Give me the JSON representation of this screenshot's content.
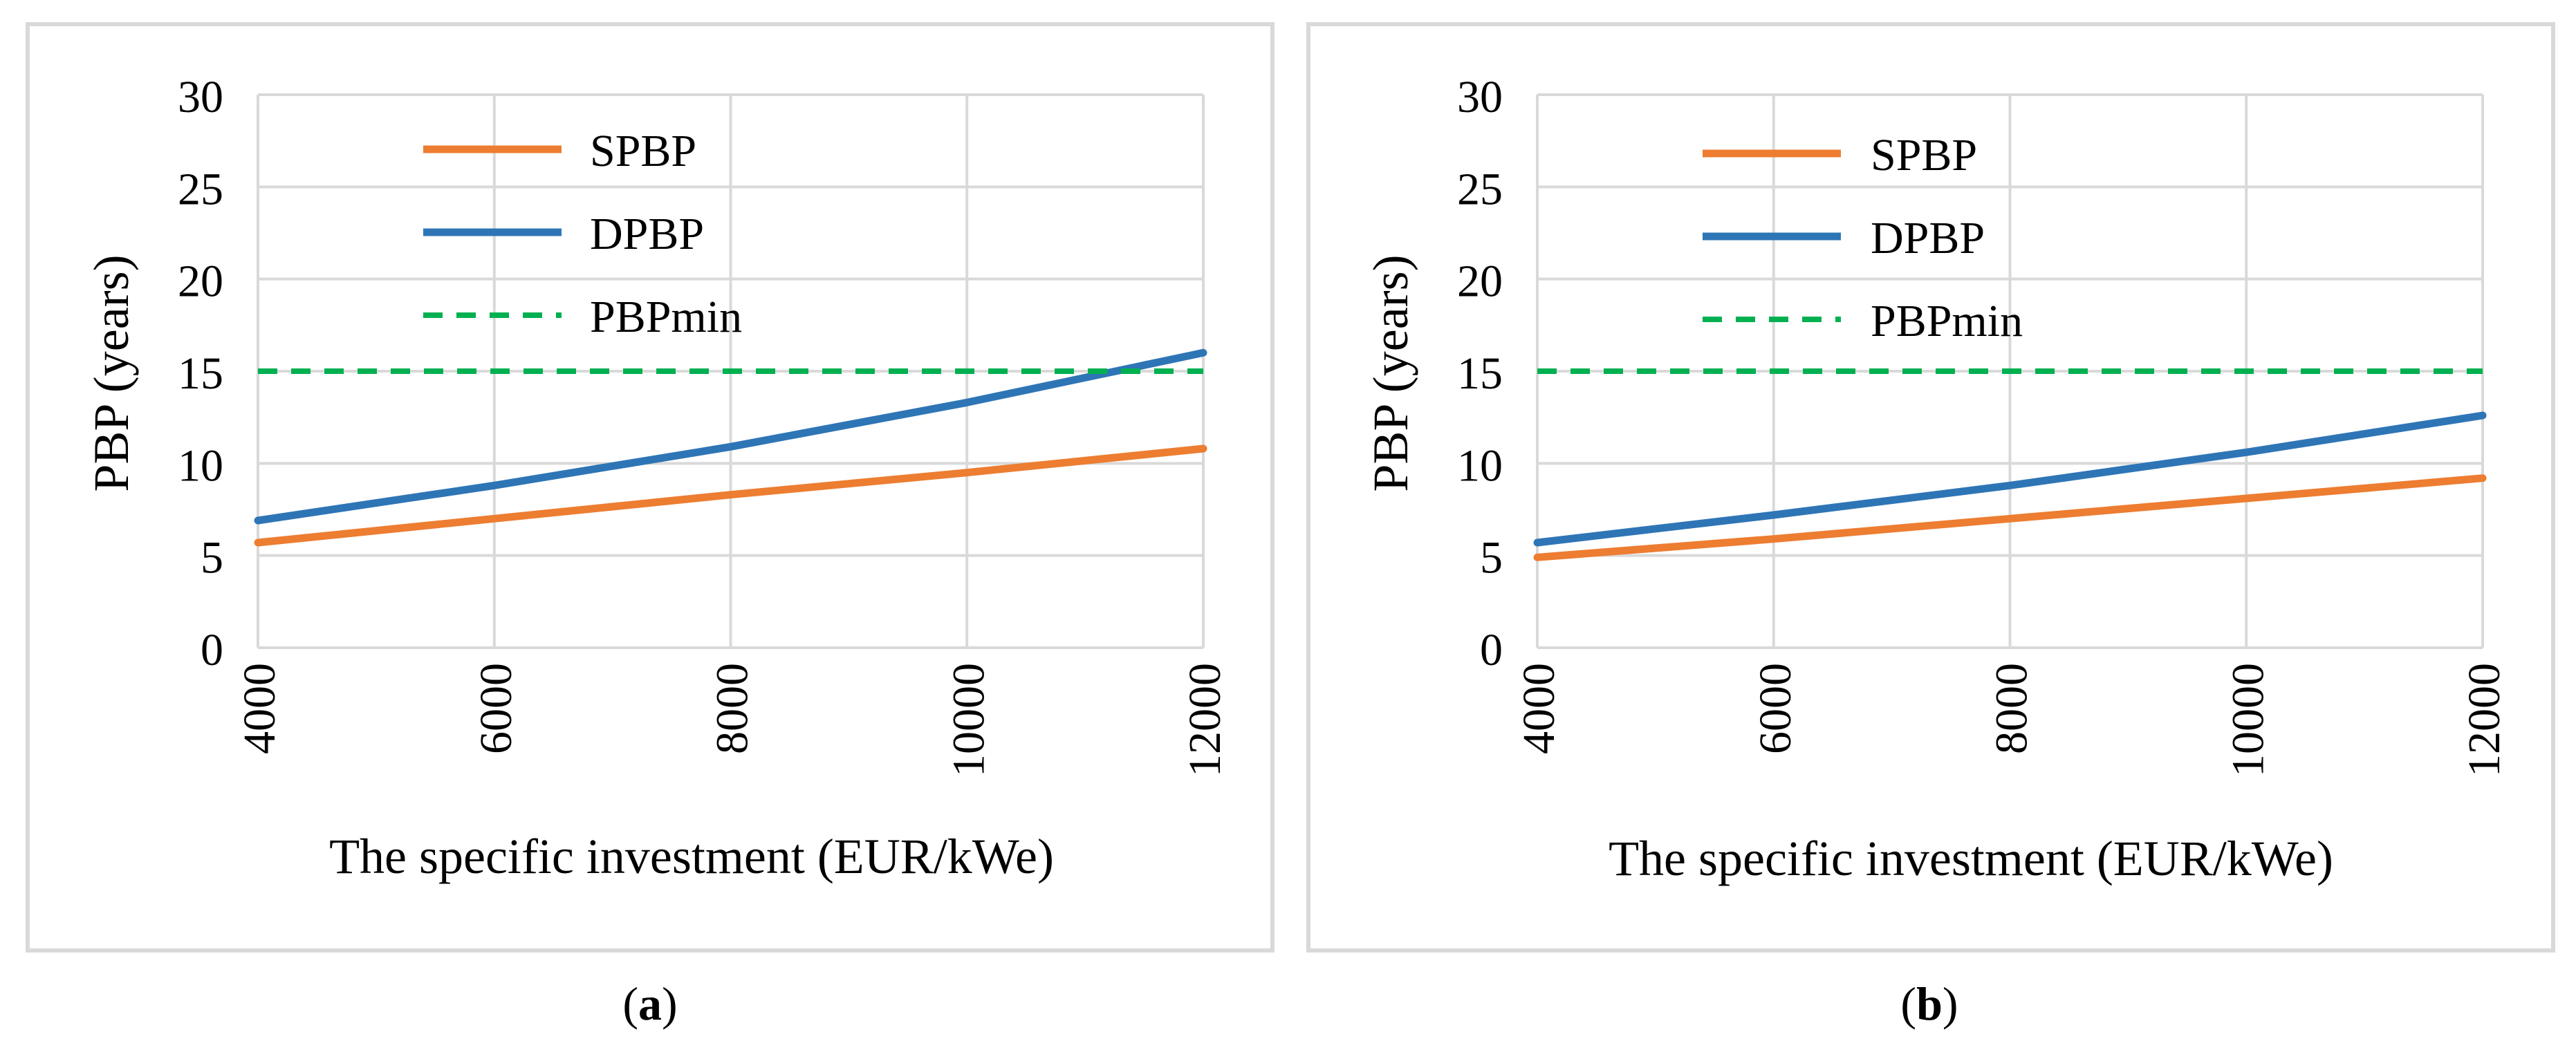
{
  "chart_data": [
    {
      "type": "line",
      "x": [
        4000,
        6000,
        8000,
        10000,
        12000
      ],
      "xlim": [
        4000,
        12000
      ],
      "ylim": [
        0,
        30
      ],
      "yticks": [
        0,
        5,
        10,
        15,
        20,
        25,
        30
      ],
      "xlabel": "The specific investment (EUR/kWe)",
      "ylabel": "PBP (years)",
      "caption_open": "(",
      "caption_letter": "a",
      "caption_close": ")",
      "grid": true,
      "legend_position": "top-left",
      "series": [
        {
          "name": "SPBP",
          "color": "#ED7D31",
          "style": "solid",
          "values": [
            5.7,
            7.0,
            8.3,
            9.5,
            10.8
          ]
        },
        {
          "name": "DPBP",
          "color": "#2E75B6",
          "style": "solid",
          "values": [
            6.9,
            8.8,
            10.9,
            13.3,
            16.0
          ]
        },
        {
          "name": "PBPmin",
          "color": "#00B050",
          "style": "dashed",
          "values": [
            15,
            15,
            15,
            15,
            15
          ]
        }
      ]
    },
    {
      "type": "line",
      "x": [
        4000,
        6000,
        8000,
        10000,
        12000
      ],
      "xlim": [
        4000,
        12000
      ],
      "ylim": [
        0,
        30
      ],
      "yticks": [
        0,
        5,
        10,
        15,
        20,
        25,
        30
      ],
      "xlabel": "The specific investment (EUR/kWe)",
      "ylabel": "PBP (years)",
      "caption_open": "(",
      "caption_letter": "b",
      "caption_close": ")",
      "grid": true,
      "legend_position": "top-left",
      "series": [
        {
          "name": "SPBP",
          "color": "#ED7D31",
          "style": "solid",
          "values": [
            4.9,
            5.9,
            7.0,
            8.1,
            9.2
          ]
        },
        {
          "name": "DPBP",
          "color": "#2E75B6",
          "style": "solid",
          "values": [
            5.7,
            7.2,
            8.8,
            10.6,
            12.6
          ]
        },
        {
          "name": "PBPmin",
          "color": "#00B050",
          "style": "dashed",
          "values": [
            15,
            15,
            15,
            15,
            15
          ]
        }
      ]
    }
  ]
}
